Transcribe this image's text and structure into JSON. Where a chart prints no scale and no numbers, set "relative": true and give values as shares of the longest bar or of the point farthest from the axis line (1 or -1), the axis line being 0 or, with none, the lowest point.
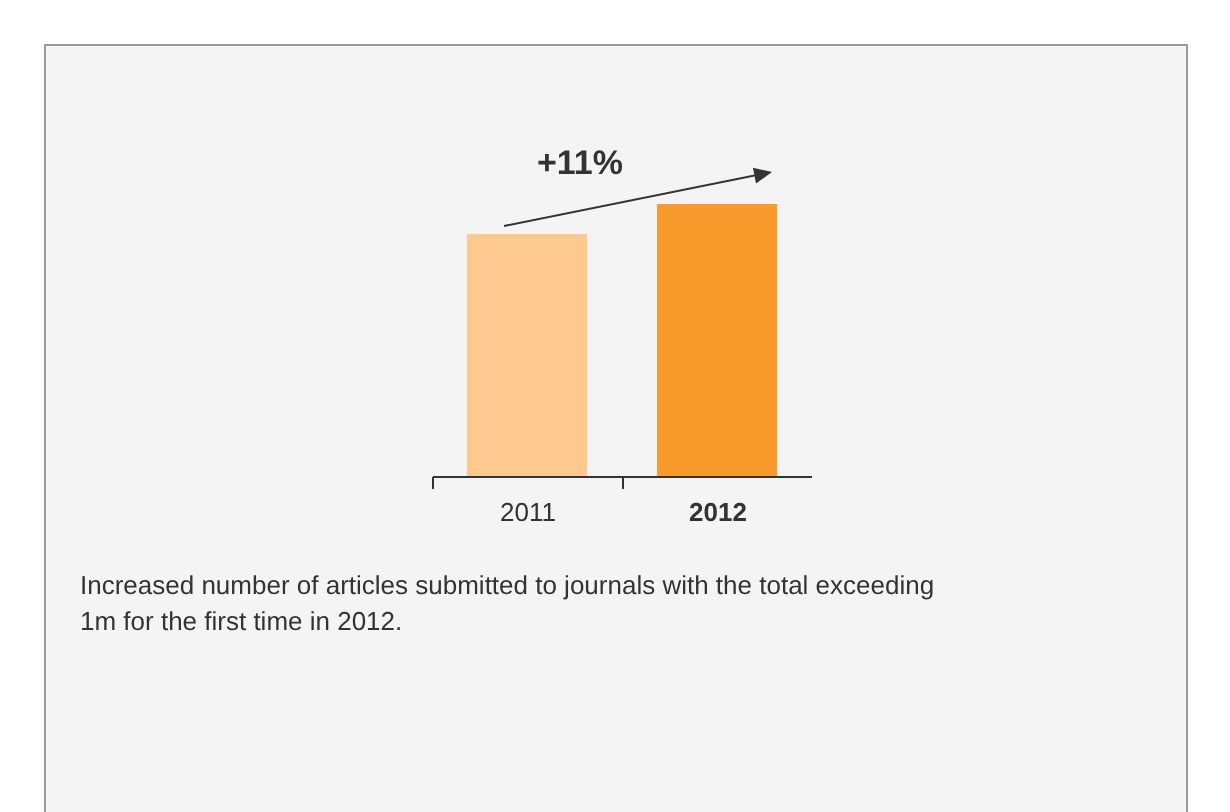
{
  "chart_data": {
    "type": "bar",
    "relative": true,
    "categories": [
      "2011",
      "2012"
    ],
    "values": [
      0.89,
      1
    ],
    "colors": [
      "#fdc98f",
      "#f89b2c"
    ],
    "annotations": [
      "+11%",
      "Increased number of articles submitted to journals with the total exceeding 1m for the first time in 2012."
    ]
  }
}
